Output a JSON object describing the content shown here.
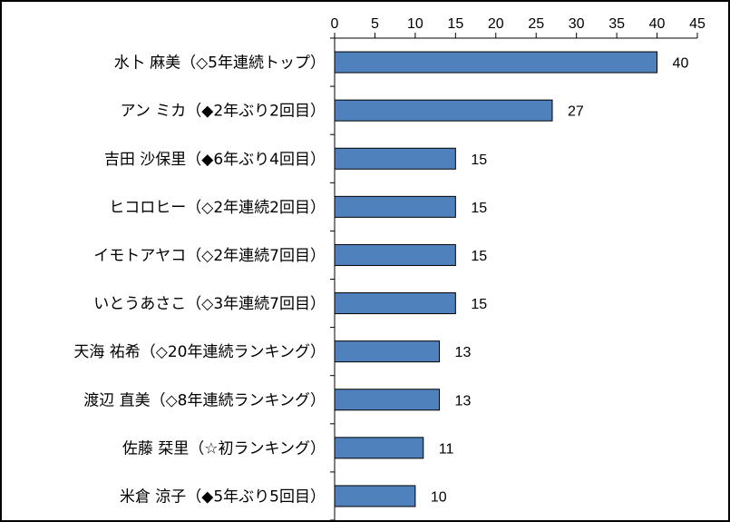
{
  "chart_data": {
    "type": "bar",
    "orientation": "horizontal",
    "title": "",
    "xlabel": "",
    "ylabel": "",
    "xlim": [
      0,
      45
    ],
    "xticks": [
      0,
      5,
      10,
      15,
      20,
      25,
      30,
      35,
      40,
      45
    ],
    "x_axis_position": "top",
    "grid": false,
    "legend": "none",
    "bar_color": "#4F81BD",
    "bar_border_color": "#000000",
    "categories": [
      "水卜 麻美（◇5年連続トップ）",
      "アン ミカ（◆2年ぶり2回目）",
      "吉田 沙保里（◆6年ぶり4回目）",
      "ヒコロヒー（◇2年連続2回目）",
      "イモトアヤコ（◇2年連続7回目）",
      "いとうあさこ（◇3年連続7回目）",
      "天海 祐希（◇20年連続ランキング）",
      "渡辺 直美（◇8年連続ランキング）",
      "佐藤 栞里（☆初ランキング）",
      "米倉 涼子（◆5年ぶり5回目）"
    ],
    "values": [
      40,
      27,
      15,
      15,
      15,
      15,
      13,
      13,
      11,
      10
    ]
  }
}
